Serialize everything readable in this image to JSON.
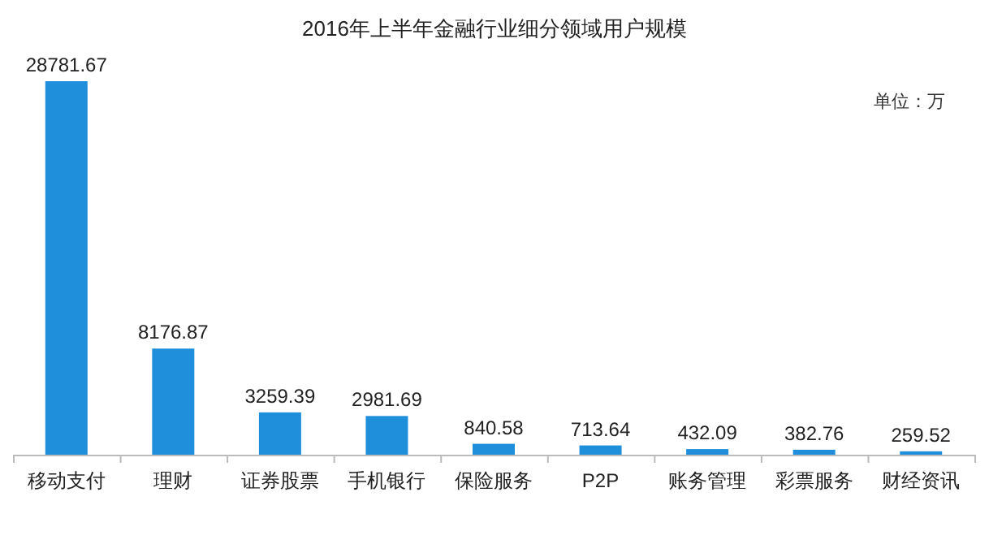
{
  "chart_data": {
    "type": "bar",
    "title": "2016年上半年金融行业细分领域用户规模",
    "categories": [
      "移动支付",
      "理财",
      "证券股票",
      "手机银行",
      "保险服务",
      "P2P",
      "账务管理",
      "彩票服务",
      "财经资讯"
    ],
    "values": [
      28781.67,
      8176.87,
      3259.39,
      2981.69,
      840.58,
      713.64,
      432.09,
      382.76,
      259.52
    ],
    "color": "#1f8fdc",
    "data_labels": true,
    "annotations": [
      "单位：万"
    ]
  }
}
